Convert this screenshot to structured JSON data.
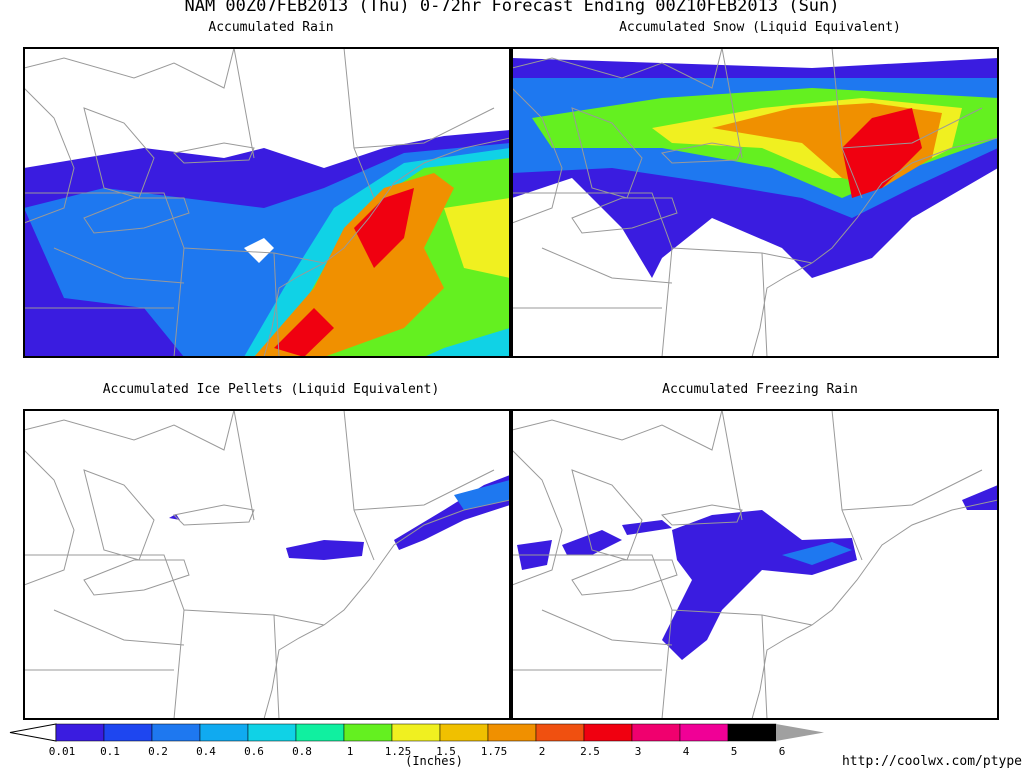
{
  "title": "NAM 00Z07FEB2013 (Thu) 0-72hr Forecast Ending 00Z10FEB2013 (Sun)",
  "panels": [
    {
      "title": "Accumulated Rain"
    },
    {
      "title": "Accumulated Snow (Liquid Equivalent)"
    },
    {
      "title": "Accumulated Ice Pellets (Liquid Equivalent)"
    },
    {
      "title": "Accumulated Freezing Rain"
    }
  ],
  "legend": {
    "ticks": [
      "0.01",
      "0.1",
      "0.2",
      "0.4",
      "0.6",
      "0.8",
      "1",
      "1.25",
      "1.5",
      "1.75",
      "2",
      "2.5",
      "3",
      "4",
      "5",
      "6"
    ],
    "colors": [
      "#3a1ce0",
      "#1e46f0",
      "#1e78f0",
      "#10aaf0",
      "#10d2e6",
      "#10f0a0",
      "#64f020",
      "#f0f020",
      "#f0c000",
      "#f09000",
      "#f05010",
      "#f00010",
      "#f0006e",
      "#f00096",
      "#000000"
    ],
    "under_color": "#ffffff",
    "over_color": "#a0a0a0",
    "units": "(Inches)"
  },
  "footer": {
    "url": "http://coolwx.com/ptype"
  }
}
